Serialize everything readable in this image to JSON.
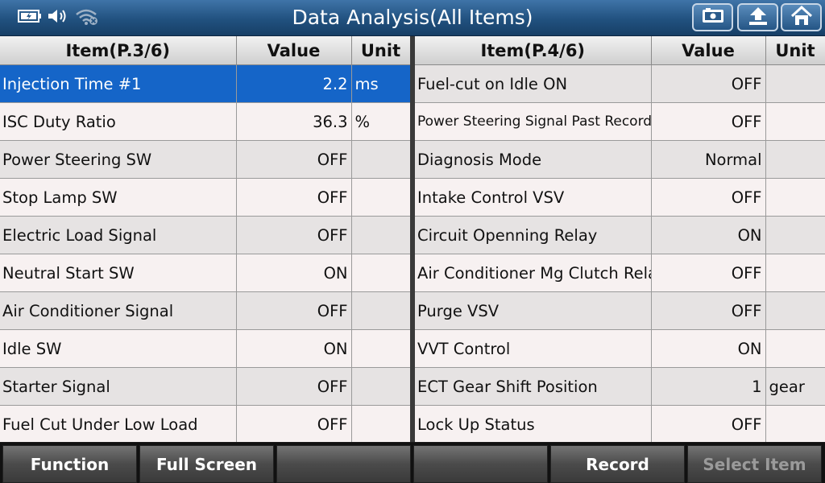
{
  "header": {
    "title": "Data Analysis(All Items)"
  },
  "left_table": {
    "headers": {
      "item": "Item(P.3/6)",
      "value": "Value",
      "unit": "Unit"
    },
    "rows": [
      {
        "item": "Injection Time #1",
        "value": "2.2",
        "unit": "ms"
      },
      {
        "item": "ISC Duty Ratio",
        "value": "36.3",
        "unit": "%"
      },
      {
        "item": "Power Steering SW",
        "value": "OFF",
        "unit": ""
      },
      {
        "item": "Stop Lamp SW",
        "value": "OFF",
        "unit": ""
      },
      {
        "item": "Electric Load Signal",
        "value": "OFF",
        "unit": ""
      },
      {
        "item": "Neutral Start SW",
        "value": "ON",
        "unit": ""
      },
      {
        "item": "Air Conditioner Signal",
        "value": "OFF",
        "unit": ""
      },
      {
        "item": "Idle SW",
        "value": "ON",
        "unit": ""
      },
      {
        "item": "Starter Signal",
        "value": "OFF",
        "unit": ""
      },
      {
        "item": "Fuel Cut Under Low Load",
        "value": "OFF",
        "unit": ""
      }
    ]
  },
  "right_table": {
    "headers": {
      "item": "Item(P.4/6)",
      "value": "Value",
      "unit": "Unit"
    },
    "rows": [
      {
        "item": "Fuel-cut on Idle ON",
        "value": "OFF",
        "unit": ""
      },
      {
        "item": "Power Steering Signal Past Record",
        "value": "OFF",
        "unit": ""
      },
      {
        "item": "Diagnosis Mode",
        "value": "Normal",
        "unit": ""
      },
      {
        "item": "Intake Control VSV",
        "value": "OFF",
        "unit": ""
      },
      {
        "item": "Circuit Openning Relay",
        "value": "ON",
        "unit": ""
      },
      {
        "item": "Air Conditioner Mg Clutch Relay",
        "value": "OFF",
        "unit": ""
      },
      {
        "item": "Purge VSV",
        "value": "OFF",
        "unit": ""
      },
      {
        "item": "VVT Control",
        "value": "ON",
        "unit": ""
      },
      {
        "item": "ECT Gear Shift Position",
        "value": "1",
        "unit": "gear"
      },
      {
        "item": "Lock Up Status",
        "value": "OFF",
        "unit": ""
      }
    ]
  },
  "footer": {
    "function": "Function",
    "full_screen": "Full Screen",
    "empty1": "",
    "empty2": "",
    "record": "Record",
    "select_item": "Select Item"
  },
  "icons": {
    "battery": "battery-icon",
    "speaker": "speaker-icon",
    "wifi": "wifi-off-icon",
    "screenshot": "screenshot-icon",
    "back": "back-arrow-icon",
    "home": "home-icon"
  },
  "colors": {
    "selected_row": "#1565c8",
    "title_bar": "#21517f"
  }
}
